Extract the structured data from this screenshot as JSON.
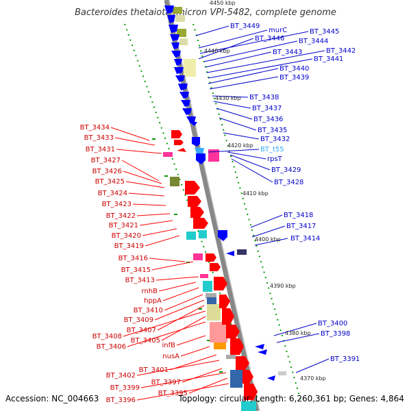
{
  "title": "Bacteroides thetaiotaomicron VPI-5482, complete genome",
  "footer": {
    "accession": "Accession: NC_004663",
    "topology": "Topology: circular; Length: 6,260,361 bp; Genes: 4,864"
  },
  "colors": {
    "forward": "#ff0000",
    "reverse": "#0000ff",
    "trna": "#33aaff",
    "backbone": "#888888",
    "ticks": "#009900"
  },
  "kbp_ticks": [
    "4450 kbp",
    "4440 kbp",
    "4430 kbp",
    "4420 kbp",
    "4410 kbp",
    "4400 kbp",
    "4390 kbp",
    "4380 kbp",
    "4370 kbp"
  ],
  "left_labels": [
    "BT_3434",
    "BT_3433",
    "BT_3431",
    "BT_3427",
    "BT_3426",
    "BT_3425",
    "BT_3424",
    "BT_3423",
    "BT_3422",
    "BT_3421",
    "BT_3420",
    "BT_3419",
    "BT_3416",
    "BT_3415",
    "BT_3413",
    "rnhB",
    "hppA",
    "BT_3410",
    "BT_3409",
    "BT_3407",
    "BT_3408",
    "BT_3405",
    "BT_3406",
    "infB",
    "nusA",
    "BT_3401",
    "BT_3402",
    "BT_3397",
    "BT_3399",
    "BT_3395",
    "BT_3396"
  ],
  "right_labels": [
    "BT_3449",
    "murC",
    "BT_3445",
    "BT_3446",
    "BT_3444",
    "BT_3443",
    "BT_3442",
    "BT_3441",
    "BT_3440",
    "BT_3439",
    "BT_3438",
    "BT_3437",
    "BT_3436",
    "BT_3435",
    "BT_3432",
    "BT_t55",
    "rpsT",
    "BT_3429",
    "BT_3428",
    "BT_3418",
    "BT_3417",
    "BT_3414",
    "BT_3400",
    "BT_3398",
    "BT_3391"
  ]
}
